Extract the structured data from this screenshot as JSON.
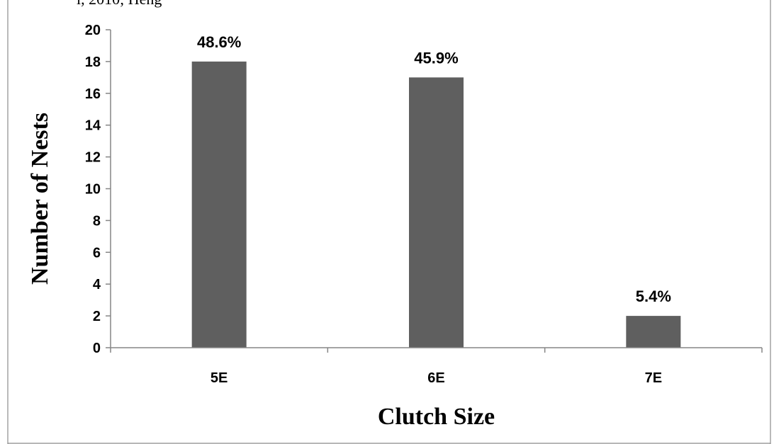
{
  "page": {
    "top_fragment_text": "l, 2010; Heng"
  },
  "chart_data": {
    "type": "bar",
    "categories": [
      "5E",
      "6E",
      "7E"
    ],
    "values": [
      18,
      17,
      2
    ],
    "data_labels": [
      "48.6%",
      "45.9%",
      "5.4%"
    ],
    "title": "",
    "xlabel": "Clutch Size",
    "ylabel": "Number of Nests",
    "ylim": [
      0,
      20
    ],
    "yticks": [
      "0",
      "2",
      "4",
      "6",
      "8",
      "10",
      "12",
      "14",
      "16",
      "18",
      "20"
    ],
    "grid": false,
    "legend": "none",
    "bar_color": "#5f5f5f",
    "axis_color": "#868686",
    "border_color": "#8c8c8c"
  }
}
